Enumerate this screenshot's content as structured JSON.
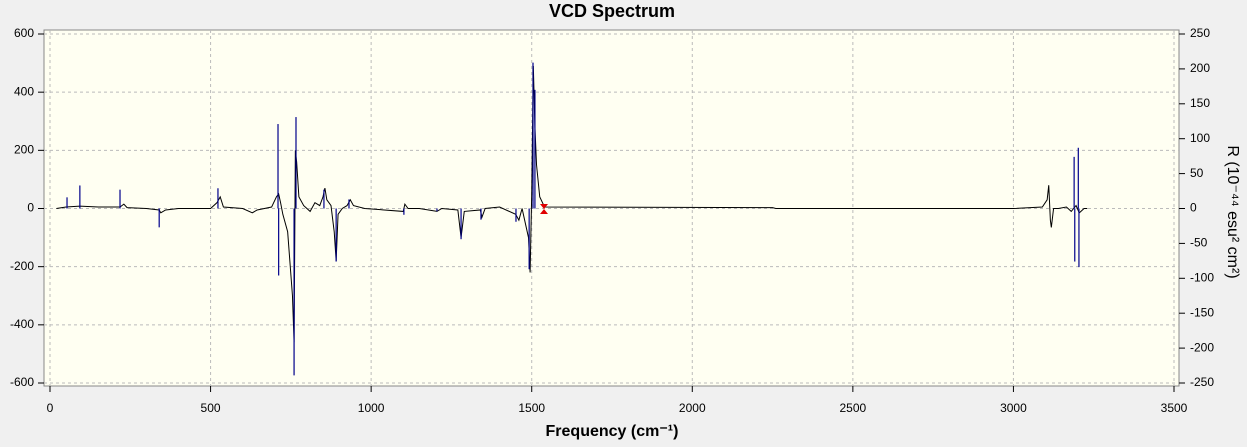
{
  "chart_data": {
    "type": "line",
    "title": "VCD Spectrum",
    "x_label": "Frequency (cm⁻¹)",
    "y2_label": "R (10⁻⁴⁴ esu² cm²)",
    "xlim": [
      0,
      3500
    ],
    "xticks": [
      0,
      500,
      1000,
      1500,
      2000,
      2500,
      3000,
      3500
    ],
    "ylim": [
      -600,
      600
    ],
    "yticks": [
      -600,
      -400,
      -200,
      0,
      200,
      400,
      600
    ],
    "y2lim": [
      -250,
      250
    ],
    "y2ticks": [
      -250,
      -200,
      -150,
      -100,
      -50,
      0,
      50,
      100,
      150,
      200,
      250
    ],
    "grid": true,
    "series": [
      {
        "type": "line",
        "color": "#000000",
        "x": [
          20,
          50,
          93,
          150,
          218,
          230,
          240,
          300,
          340,
          345,
          360,
          400,
          500,
          520,
          530,
          540,
          600,
          630,
          645,
          690,
          705,
          712,
          718,
          725,
          740,
          755,
          760,
          764,
          768,
          775,
          790,
          810,
          825,
          840,
          850,
          856,
          862,
          875,
          885,
          891,
          897,
          910,
          925,
          935,
          945,
          980,
          1100,
          1105,
          1115,
          1150,
          1205,
          1220,
          1270,
          1280,
          1290,
          1340,
          1345,
          1355,
          1400,
          1450,
          1460,
          1470,
          1490,
          1495,
          1500,
          1505,
          1510,
          1515,
          1525,
          1540,
          2250,
          2260,
          3000,
          3090,
          3105,
          3110,
          3115,
          3118,
          3125,
          3140,
          3165,
          3180,
          3195,
          3205,
          3220,
          3230
        ],
        "values": [
          0,
          5,
          8,
          5,
          5,
          15,
          3,
          0,
          -5,
          -15,
          -5,
          0,
          0,
          20,
          40,
          5,
          0,
          -15,
          -5,
          5,
          40,
          50,
          20,
          -20,
          -80,
          -300,
          -460,
          200,
          160,
          40,
          10,
          -10,
          20,
          10,
          40,
          70,
          30,
          10,
          -80,
          -180,
          -20,
          0,
          10,
          30,
          10,
          0,
          -10,
          15,
          0,
          0,
          -10,
          0,
          -5,
          -100,
          -10,
          -5,
          -30,
          0,
          5,
          -20,
          -40,
          0,
          -100,
          -220,
          50,
          490,
          280,
          150,
          40,
          5,
          3,
          0,
          0,
          5,
          30,
          80,
          -40,
          -65,
          0,
          0,
          5,
          -10,
          10,
          -15,
          0,
          0
        ]
      },
      {
        "type": "stem",
        "axis": "y2",
        "color": "#00008b",
        "x": [
          53,
          93,
          218,
          340,
          523,
          710,
          712,
          760,
          766,
          853,
          891,
          931,
          1102,
          1205,
          1280,
          1342,
          1451,
          1492,
          1504,
          1510,
          3189,
          3191,
          3202,
          3204
        ],
        "values": [
          16,
          33,
          27,
          -27,
          29,
          121,
          -96,
          -239,
          131,
          27,
          -76,
          13,
          -9,
          -4,
          -44,
          -16,
          -19,
          -87,
          209,
          170,
          74,
          -76,
          87,
          -84
        ]
      }
    ]
  }
}
